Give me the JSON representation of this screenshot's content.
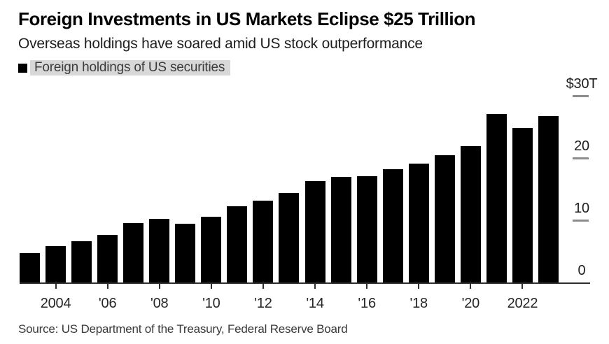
{
  "chart_data": {
    "type": "bar",
    "title": "Foreign Investments in US Markets Eclipse $25 Trillion",
    "subtitle": "Overseas holdings have soared amid US stock outperformance",
    "legend": [
      {
        "label": "Foreign holdings of US securities",
        "color": "#000000"
      }
    ],
    "legend_position": "top-left",
    "unit": "USD trillions",
    "categories": [
      2003,
      2004,
      2005,
      2006,
      2007,
      2008,
      2009,
      2010,
      2011,
      2012,
      2013,
      2014,
      2015,
      2016,
      2017,
      2018,
      2019,
      2020,
      2021,
      2022,
      2023
    ],
    "values": [
      4.7,
      5.8,
      6.6,
      7.6,
      9.6,
      10.2,
      9.5,
      10.6,
      12.2,
      13.1,
      14.4,
      16.3,
      17.0,
      17.1,
      18.2,
      19.1,
      20.4,
      21.9,
      27.1,
      24.8,
      26.7
    ],
    "series_name": "Foreign holdings of US securities",
    "bar_color": "#000000",
    "xlabel": "",
    "ylabel": "",
    "ylim": [
      0,
      30
    ],
    "grid": "right-side tick dashes only",
    "y_axis": {
      "side": "right",
      "ticks": [
        {
          "value": 0,
          "label": "0"
        },
        {
          "value": 10,
          "label": "10"
        },
        {
          "value": 20,
          "label": "20"
        },
        {
          "value": 30,
          "label": "$30T"
        }
      ]
    },
    "x_axis": {
      "ticks": [
        {
          "year": 2004,
          "label": "2004"
        },
        {
          "year": 2006,
          "label": "'06"
        },
        {
          "year": 2008,
          "label": "'08"
        },
        {
          "year": 2010,
          "label": "'10"
        },
        {
          "year": 2012,
          "label": "'12"
        },
        {
          "year": 2014,
          "label": "'14"
        },
        {
          "year": 2016,
          "label": "'16"
        },
        {
          "year": 2018,
          "label": "'18"
        },
        {
          "year": 2020,
          "label": "'20"
        },
        {
          "year": 2022,
          "label": "2022"
        }
      ]
    }
  },
  "source": "Source: US Department of the Treasury, Federal Reserve Board",
  "colors": {
    "background": "#ffffff",
    "bar": "#000000",
    "legend_highlight": "#d8d8d8",
    "legend_text": "#3c3c3c",
    "axis_line": "#2e2e2e",
    "grid_dash": "#8c8c8c",
    "axis_label_text": "#1d1d1d",
    "subtitle_text": "#1e1e1e",
    "source_text": "#383838"
  }
}
